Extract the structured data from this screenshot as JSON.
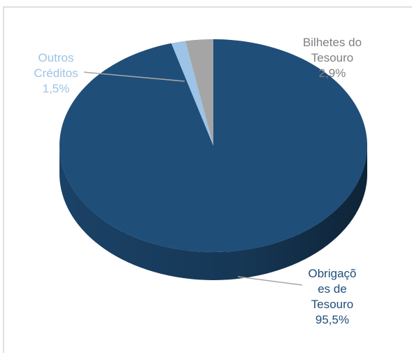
{
  "chart_data": {
    "type": "pie",
    "categories": [
      "Obrigações de Tesouro",
      "Outros Créditos",
      "Bilhetes do Tesouro"
    ],
    "values": [
      95.5,
      1.5,
      2.9
    ],
    "value_labels": [
      "95,5%",
      "1,5%",
      "2,9%"
    ],
    "colors": [
      "#1f4e79",
      "#9dc3e6",
      "#a5a5a5"
    ]
  }
}
